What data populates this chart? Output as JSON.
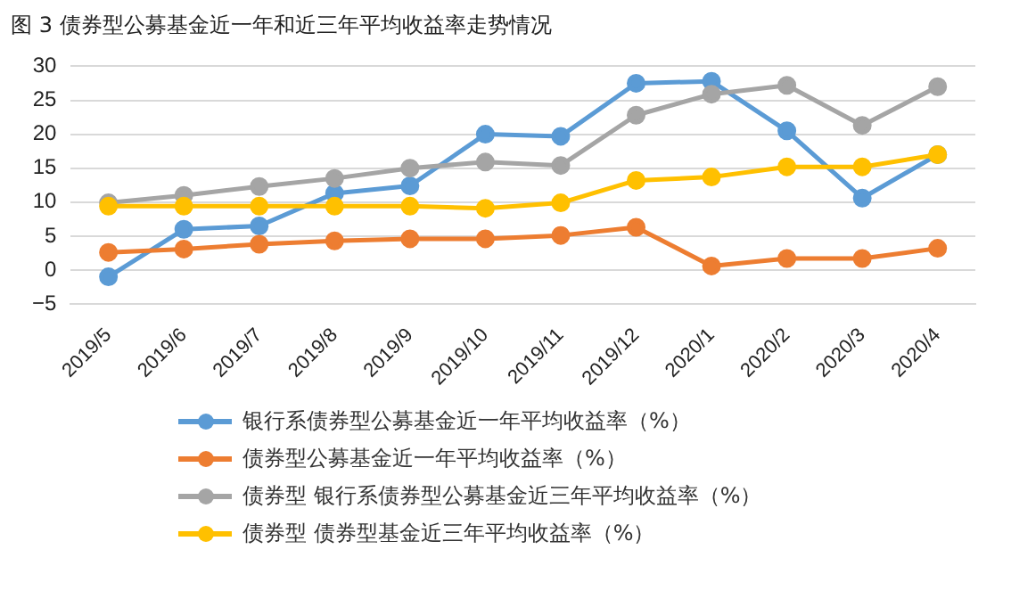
{
  "chart_data": {
    "type": "line",
    "title": "图 3 债券型公募基金近一年和近三年平均收益率走势情况",
    "categories": [
      "2019/5",
      "2019/6",
      "2019/7",
      "2019/8",
      "2019/9",
      "2019/10",
      "2019/11",
      "2019/12",
      "2020/1",
      "2020/2",
      "2020/3",
      "2020/4"
    ],
    "series": [
      {
        "name": "银行系债券型公募基金近一年平均收益率（%）",
        "color": "#5b9bd5",
        "values": [
          -1,
          6,
          6.5,
          11.3,
          12.4,
          20,
          19.7,
          27.5,
          27.8,
          20.5,
          10.6,
          17
        ]
      },
      {
        "name": "债券型公募基金近一年平均收益率（%）",
        "color": "#ed7d31",
        "values": [
          2.6,
          3.1,
          3.8,
          4.3,
          4.6,
          4.6,
          5.1,
          6.3,
          0.6,
          1.7,
          1.7,
          3.2
        ]
      },
      {
        "name": "债券型 银行系债券型公募基金近三年平均收益率（%）",
        "color": "#a5a5a5",
        "values": [
          9.9,
          11,
          12.3,
          13.5,
          15,
          15.9,
          15.4,
          22.8,
          25.9,
          27.2,
          21.3,
          27
        ]
      },
      {
        "name": "债券型 债券型基金近三年平均收益率（%）",
        "color": "#ffc000",
        "values": [
          9.4,
          9.4,
          9.4,
          9.4,
          9.4,
          9.1,
          9.9,
          13.2,
          13.7,
          15.2,
          15.2,
          17
        ]
      }
    ],
    "ylim": [
      -5,
      30
    ],
    "yticks": [
      -5,
      0,
      5,
      10,
      15,
      20,
      25,
      30
    ],
    "grid": "y",
    "legend": "bottom",
    "marker": "circle",
    "line_style": "solid"
  }
}
